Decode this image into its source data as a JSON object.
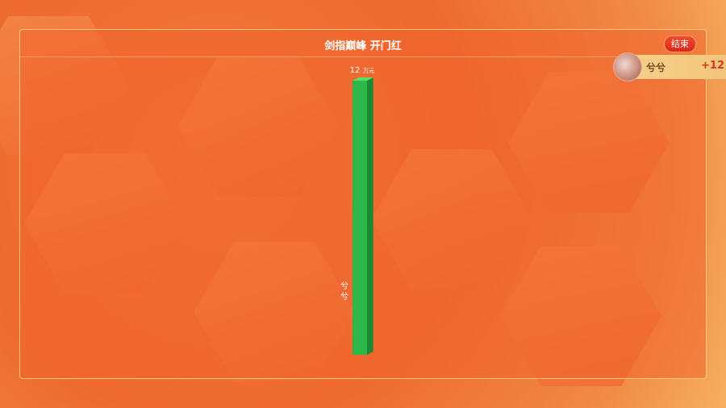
{
  "header": {
    "title": "剑指巅峰 开门红",
    "end_label": "结束"
  },
  "ranking": {
    "items": [
      {
        "name": "兮兮",
        "score": "+12"
      }
    ]
  },
  "colors": {
    "bar": "#2fb84a",
    "accent": "#e0341e",
    "background": "#ef6a30"
  },
  "chart_data": {
    "type": "bar",
    "categories": [
      "兮兮"
    ],
    "values": [
      12
    ],
    "unit": "万元",
    "value_labels": [
      "12"
    ],
    "ylim": [
      0,
      12
    ],
    "grid": false
  }
}
